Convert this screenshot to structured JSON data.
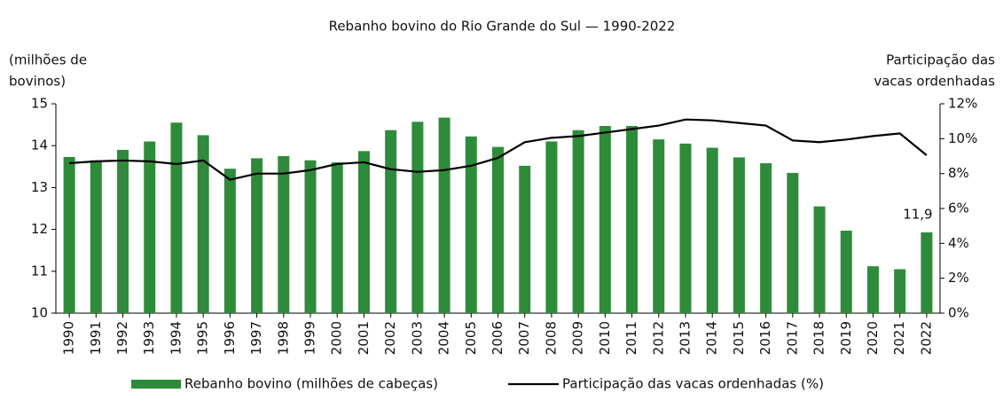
{
  "chart_data": {
    "type": "bar_line",
    "title": "Rebanho bovino do Rio Grande do Sul — 1990-2022",
    "y_label": [
      "(milhões de",
      "bovinos)"
    ],
    "y2_label": [
      "Participação das",
      "vacas ordenhadas"
    ],
    "categories": [
      "1990",
      "1991",
      "1992",
      "1993",
      "1994",
      "1995",
      "1996",
      "1997",
      "1998",
      "1999",
      "2000",
      "2001",
      "2002",
      "2003",
      "2004",
      "2005",
      "2006",
      "2007",
      "2008",
      "2009",
      "2010",
      "2011",
      "2012",
      "2013",
      "2014",
      "2015",
      "2016",
      "2017",
      "2018",
      "2019",
      "2020",
      "2021",
      "2022"
    ],
    "series": [
      {
        "name": "Rebanho bovino (milhões de cabeças)",
        "color": "#2e8b3a",
        "kind": "bar",
        "values": [
          13.73,
          13.65,
          13.9,
          14.1,
          14.55,
          14.25,
          13.45,
          13.7,
          13.75,
          13.65,
          13.6,
          13.87,
          14.37,
          14.57,
          14.67,
          14.22,
          13.97,
          13.52,
          14.1,
          14.37,
          14.47,
          14.47,
          14.15,
          14.05,
          13.95,
          13.72,
          13.58,
          13.35,
          12.55,
          11.97,
          11.12,
          11.05,
          11.93
        ],
        "value_labels": [
          null,
          null,
          null,
          null,
          null,
          null,
          null,
          null,
          null,
          null,
          null,
          null,
          null,
          null,
          null,
          null,
          null,
          null,
          null,
          null,
          null,
          null,
          null,
          null,
          null,
          null,
          null,
          null,
          null,
          null,
          null,
          null,
          "11,9"
        ]
      },
      {
        "name": "Participação das vacas ordenhadas (%)",
        "color": "#000000",
        "kind": "line",
        "axis": "y2",
        "values": [
          8.6,
          8.7,
          8.75,
          8.7,
          8.55,
          8.75,
          7.65,
          8.0,
          8.0,
          8.2,
          8.55,
          8.65,
          8.25,
          8.1,
          8.2,
          8.45,
          8.9,
          9.8,
          10.05,
          10.15,
          10.35,
          10.55,
          10.75,
          11.1,
          11.05,
          10.9,
          10.75,
          9.9,
          9.8,
          9.95,
          10.15,
          10.3,
          9.05
        ]
      }
    ],
    "ylim": [
      10,
      15
    ],
    "yticks": [
      10,
      11,
      12,
      13,
      14,
      15
    ],
    "y2lim": [
      0,
      12
    ],
    "y2ticks": [
      {
        "value": 0,
        "label": "0%"
      },
      {
        "value": 2,
        "label": "2%"
      },
      {
        "value": 4,
        "label": "4%"
      },
      {
        "value": 6,
        "label": "6%"
      },
      {
        "value": 8,
        "label": "8%"
      },
      {
        "value": 10,
        "label": "10%"
      },
      {
        "value": 12,
        "label": "12%"
      }
    ],
    "legend": "bottom"
  }
}
